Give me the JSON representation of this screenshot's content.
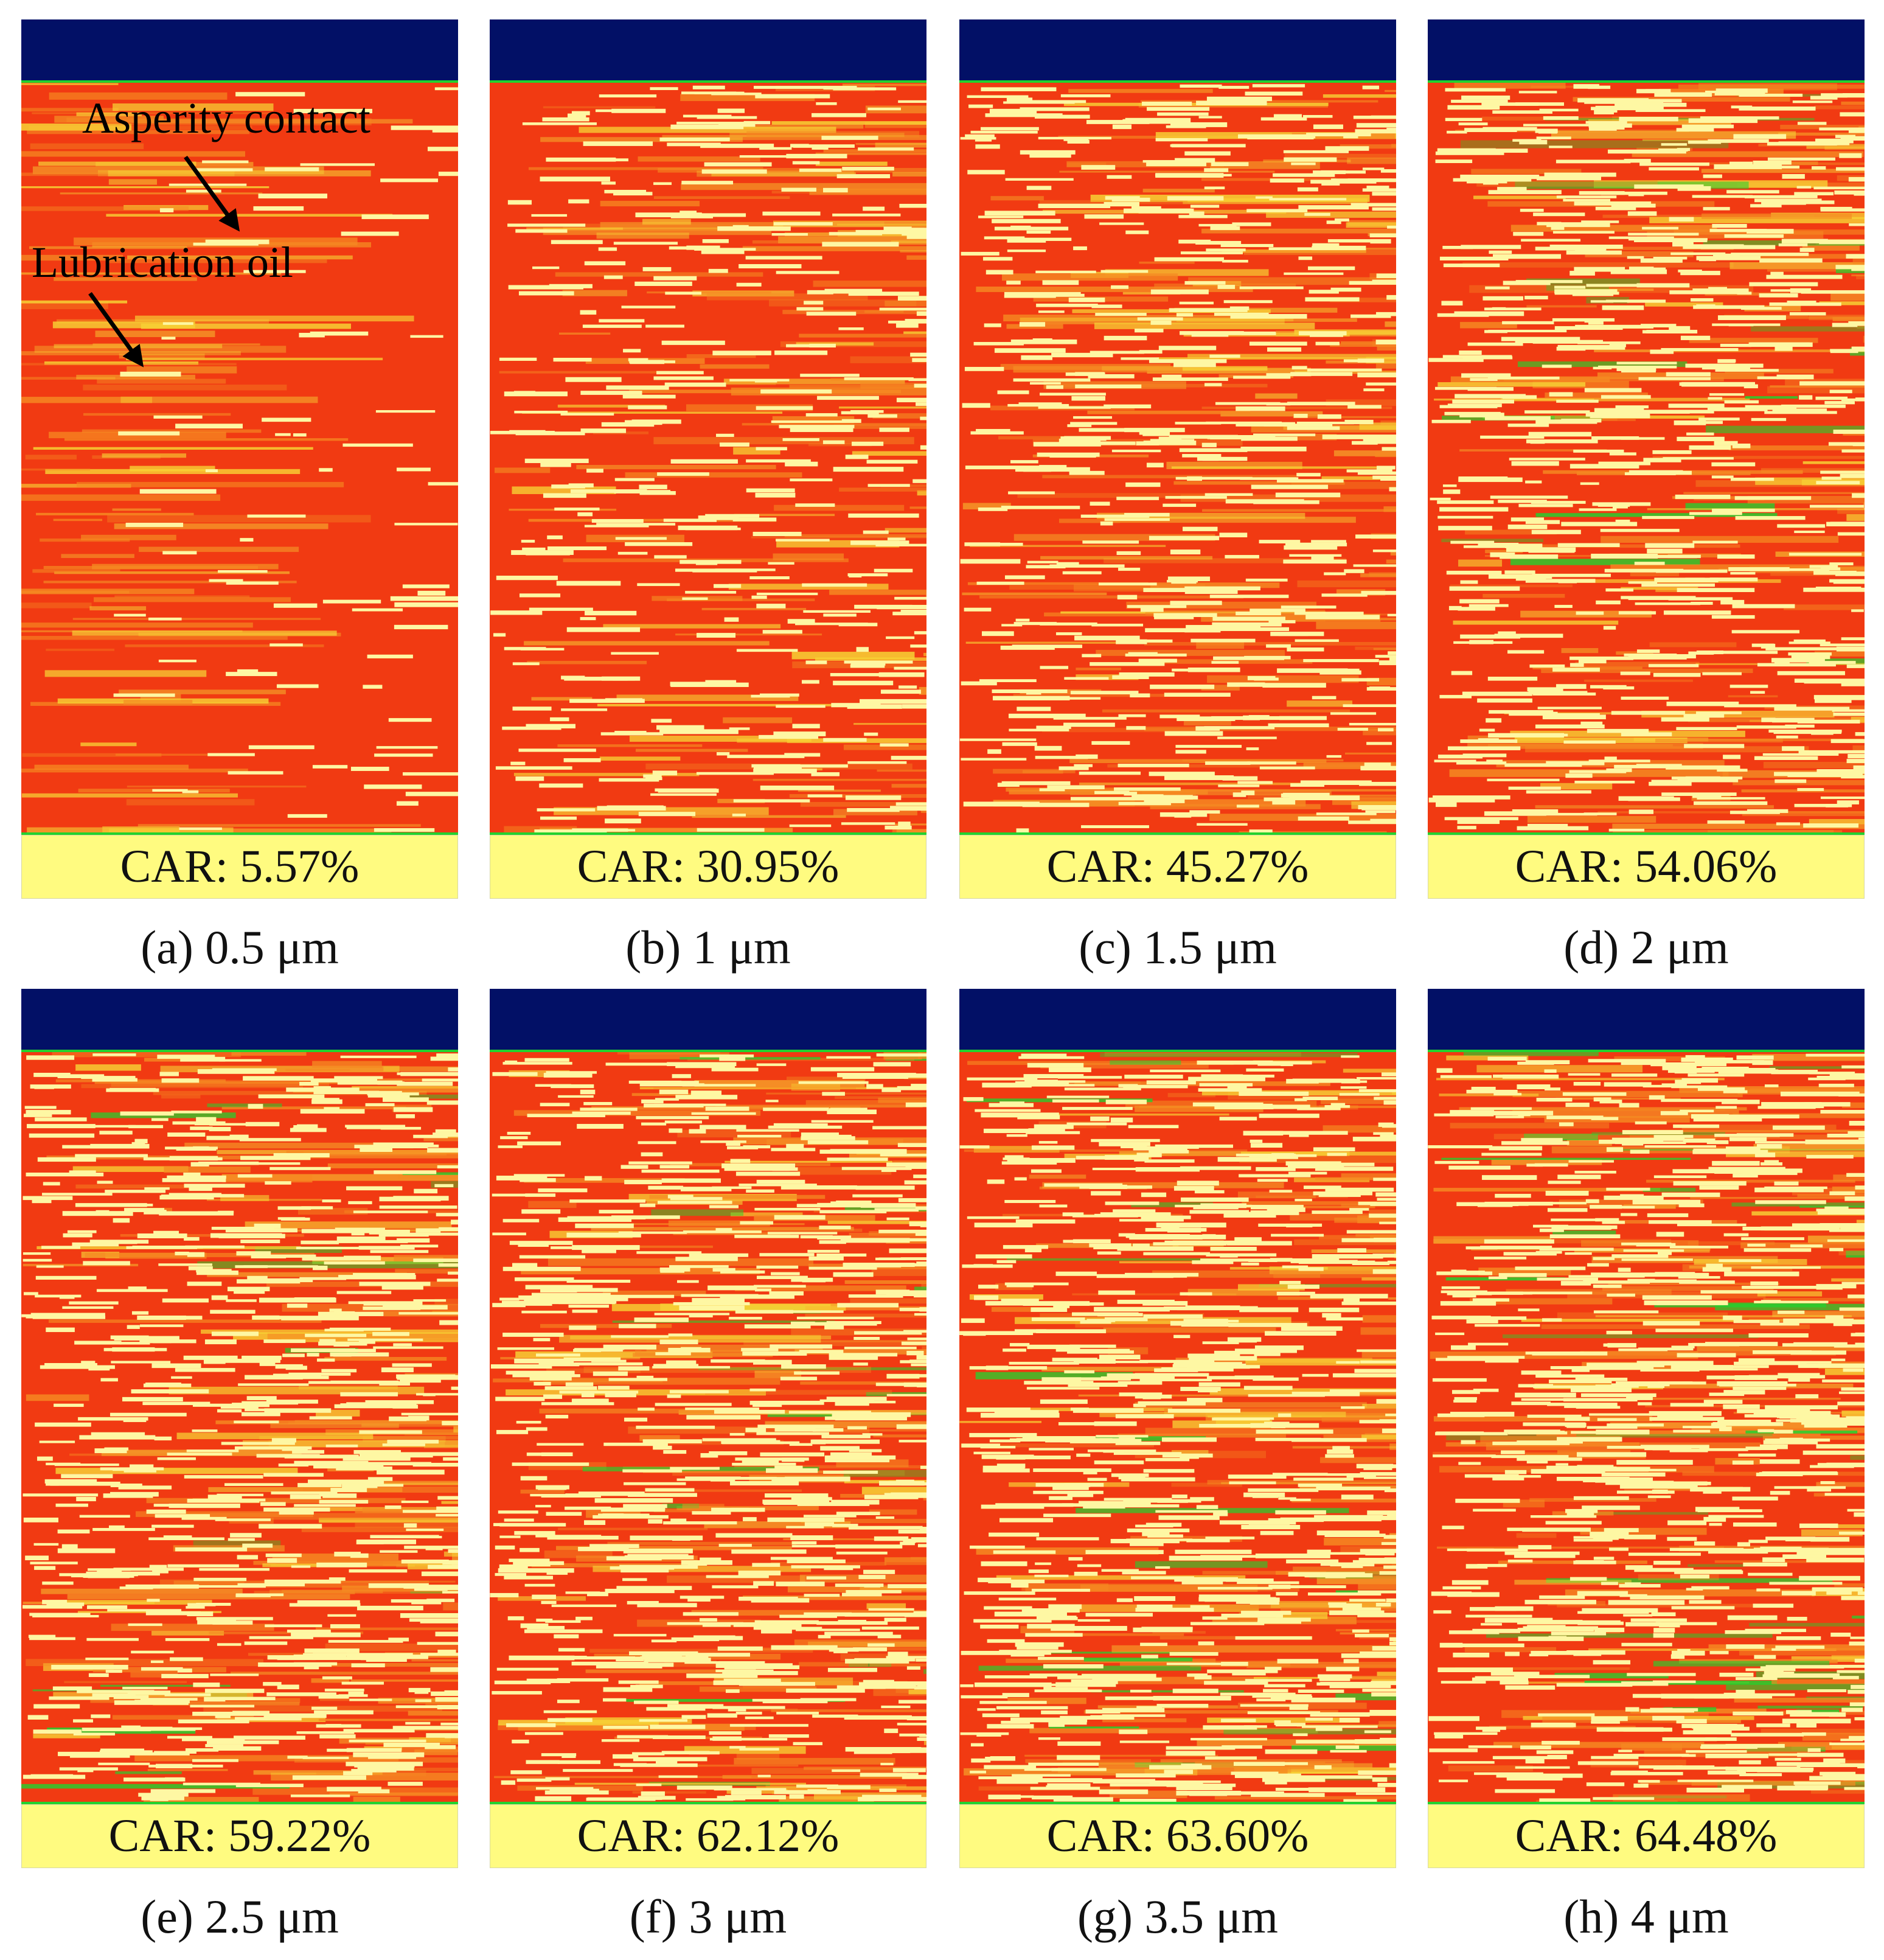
{
  "figure": {
    "annotations": {
      "asperity_contact": "Asperity contact",
      "lubrication_oil": "Lubrication oil"
    },
    "colors": {
      "top_band": "#021066",
      "oil_red": "#f13a12",
      "contact_yellow": "#fef7a3",
      "mid_yellow": "#f7d235",
      "orange": "#f58a22",
      "green": "#22d22e",
      "car_box_bg": "#fffb80"
    },
    "panels": [
      {
        "car_label": "CAR: 5.57%",
        "car_percent": 5.57,
        "caption": "(a) 0.5 μm",
        "gap_um": 0.5
      },
      {
        "car_label": "CAR: 30.95%",
        "car_percent": 30.95,
        "caption": "(b) 1 μm",
        "gap_um": 1
      },
      {
        "car_label": "CAR: 45.27%",
        "car_percent": 45.27,
        "caption": "(c) 1.5 μm",
        "gap_um": 1.5
      },
      {
        "car_label": "CAR: 54.06%",
        "car_percent": 54.06,
        "caption": "(d) 2 μm",
        "gap_um": 2
      },
      {
        "car_label": "CAR: 59.22%",
        "car_percent": 59.22,
        "caption": "(e) 2.5 μm",
        "gap_um": 2.5
      },
      {
        "car_label": "CAR: 62.12%",
        "car_percent": 62.12,
        "caption": "(f) 3 μm",
        "gap_um": 3
      },
      {
        "car_label": "CAR: 63.60%",
        "car_percent": 63.6,
        "caption": "(g) 3.5 μm",
        "gap_um": 3.5
      },
      {
        "car_label": "CAR: 64.48%",
        "car_percent": 64.48,
        "caption": "(h) 4 μm",
        "gap_um": 4
      }
    ]
  }
}
